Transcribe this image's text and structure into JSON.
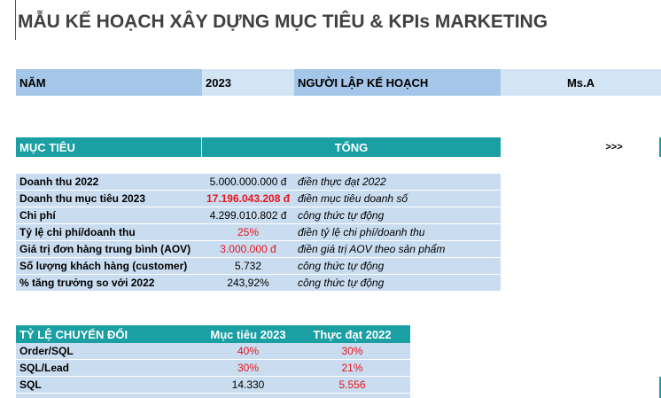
{
  "title": "MẪU KẾ HOẠCH XÂY DỰNG MỤC TIÊU & KPIs MARKETING",
  "info": {
    "year_label": "NĂM",
    "year": "2023",
    "planner_label": "NGƯỜI LẬP KẾ HOẠCH",
    "planner": "Ms.A"
  },
  "goals": {
    "header": [
      "MỤC TIÊU",
      "TỔNG"
    ],
    "next": ">>>",
    "rows": [
      [
        "Doanh thu 2022",
        "5.000.000.000 đ",
        "điền thực đạt 2022"
      ],
      [
        "Doanh thu mục tiêu 2023",
        "17.196.043.208 đ",
        "điền mục tiêu doanh số"
      ],
      [
        "Chi phí",
        "4.299.010.802 đ",
        "công thức tự động"
      ],
      [
        "Tỷ lệ chi phí/doanh thu",
        "25%",
        "điền tỷ lệ chi phí/doanh thu"
      ],
      [
        "Giá trị đơn hàng trung bình (AOV)",
        "3.000.000 đ",
        "điền giá trị AOV theo sản phẩm"
      ],
      [
        "Số lượng khách hàng (customer)",
        "5.732",
        "công thức tự động"
      ],
      [
        "% tăng trưởng so với 2022",
        "243,92%",
        "công thức tự động"
      ]
    ]
  },
  "conversion": {
    "header": [
      "TỶ LỆ CHUYỂN ĐỔI",
      "Mục tiêu 2023",
      "Thực đạt 2022"
    ],
    "rows": [
      [
        "Order/SQL",
        "40%",
        "30%"
      ],
      [
        "SQL/Lead",
        "30%",
        "21%"
      ],
      [
        "SQL",
        "14.330",
        "5.556"
      ]
    ]
  }
}
